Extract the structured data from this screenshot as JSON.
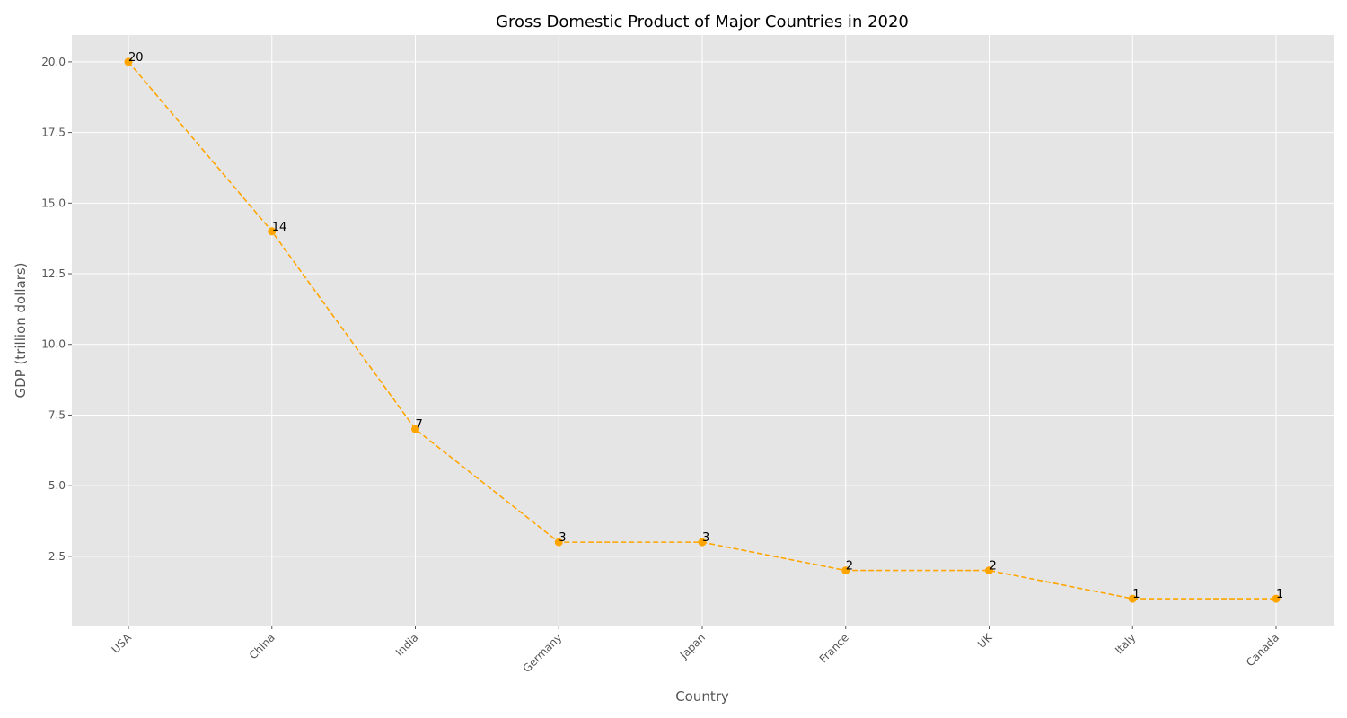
{
  "chart_data": {
    "type": "line",
    "title": "Gross Domestic Product of Major Countries in 2020",
    "xlabel": "Country",
    "ylabel": "GDP (trillion dollars)",
    "categories": [
      "USA",
      "China",
      "India",
      "Germany",
      "Japan",
      "France",
      "UK",
      "Italy",
      "Canada"
    ],
    "series": [
      {
        "values": [
          20,
          14,
          7,
          3,
          3,
          2,
          2,
          1,
          1
        ],
        "color": "#FFA500",
        "line_style": "dashed",
        "marker": "circle"
      }
    ],
    "data_labels": [
      "20",
      "14",
      "7",
      "3",
      "3",
      "2",
      "2",
      "1",
      "1"
    ],
    "yticks": [
      "2.5",
      "5.0",
      "7.5",
      "10.0",
      "12.5",
      "15.0",
      "17.5",
      "20.0"
    ],
    "ylim": [
      0.05,
      20.95
    ],
    "grid": true,
    "legend": "none",
    "colors": {
      "plot_background": "#E5E5E5",
      "grid": "#FFFFFF",
      "text": "#555555"
    }
  }
}
